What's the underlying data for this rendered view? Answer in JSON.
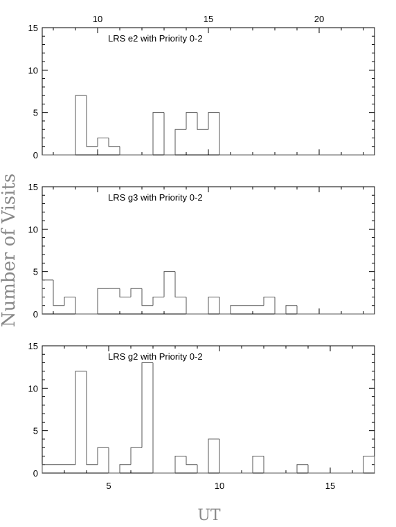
{
  "figure": {
    "ylabel": "Number of Visits",
    "xlabel": "UT"
  },
  "colors": {
    "axis": "#000000",
    "histogram": "#555555",
    "axis_label": "#888888"
  },
  "chart_data": [
    {
      "type": "bar",
      "style": "step-histogram",
      "title": "LRS e2 with Priority 0-2",
      "ylim": [
        0,
        15
      ],
      "xlim": [
        7.5,
        22.5
      ],
      "y_major_ticks": [
        0,
        5,
        10,
        15
      ],
      "x_major_ticks": [
        10,
        15,
        20
      ],
      "x_tick_position": "top",
      "bin_width": 0.5,
      "bin_edges": [
        7.5,
        8.0,
        8.5,
        9.0,
        9.5,
        10.0,
        10.5,
        11.0,
        11.5,
        12.0,
        12.5,
        13.0,
        13.5,
        14.0,
        14.5,
        15.0,
        15.5,
        16.0,
        16.5,
        17.0,
        17.5,
        18.0,
        18.5,
        19.0,
        19.5,
        20.0,
        20.5,
        21.0,
        21.5,
        22.0,
        22.5
      ],
      "values": [
        0,
        0,
        0,
        7,
        1,
        2,
        1,
        0,
        0,
        0,
        5,
        0,
        3,
        5,
        3,
        5,
        0,
        0,
        0,
        0,
        0,
        0,
        0,
        0,
        0,
        0,
        0,
        0,
        0,
        0
      ]
    },
    {
      "type": "bar",
      "style": "step-histogram",
      "title": "LRS g3 with Priority 0-2",
      "ylim": [
        0,
        15
      ],
      "xlim": [
        7.5,
        22.5
      ],
      "y_major_ticks": [
        0,
        5,
        10,
        15
      ],
      "bin_width": 0.5,
      "bin_edges": [
        7.5,
        8.0,
        8.5,
        9.0,
        9.5,
        10.0,
        10.5,
        11.0,
        11.5,
        12.0,
        12.5,
        13.0,
        13.5,
        14.0,
        14.5,
        15.0,
        15.5,
        16.0,
        16.5,
        17.0,
        17.5,
        18.0,
        18.5,
        19.0,
        19.5,
        20.0,
        20.5,
        21.0,
        21.5,
        22.0,
        22.5
      ],
      "values": [
        4,
        1,
        2,
        0,
        0,
        3,
        3,
        2,
        3,
        1,
        2,
        5,
        2,
        0,
        0,
        2,
        0,
        1,
        1,
        1,
        2,
        0,
        1,
        0,
        0,
        0,
        0,
        0,
        0,
        0
      ]
    },
    {
      "type": "bar",
      "style": "step-histogram",
      "title": "LRS g2 with Priority 0-2",
      "ylim": [
        0,
        15
      ],
      "xlim": [
        2,
        17
      ],
      "y_major_ticks": [
        0,
        5,
        10,
        15
      ],
      "x_major_ticks": [
        5,
        10,
        15
      ],
      "x_tick_position": "bottom",
      "bin_width": 0.5,
      "bin_edges": [
        2.0,
        2.5,
        3.0,
        3.5,
        4.0,
        4.5,
        5.0,
        5.5,
        6.0,
        6.5,
        7.0,
        7.5,
        8.0,
        8.5,
        9.0,
        9.5,
        10.0,
        10.5,
        11.0,
        11.5,
        12.0,
        12.5,
        13.0,
        13.5,
        14.0,
        14.5,
        15.0,
        15.5,
        16.0,
        16.5,
        17.0
      ],
      "values": [
        1,
        1,
        1,
        12,
        1,
        3,
        0,
        1,
        3,
        13,
        0,
        0,
        2,
        1,
        0,
        4,
        0,
        0,
        0,
        2,
        0,
        0,
        0,
        1,
        0,
        0,
        0,
        0,
        0,
        2
      ]
    }
  ]
}
